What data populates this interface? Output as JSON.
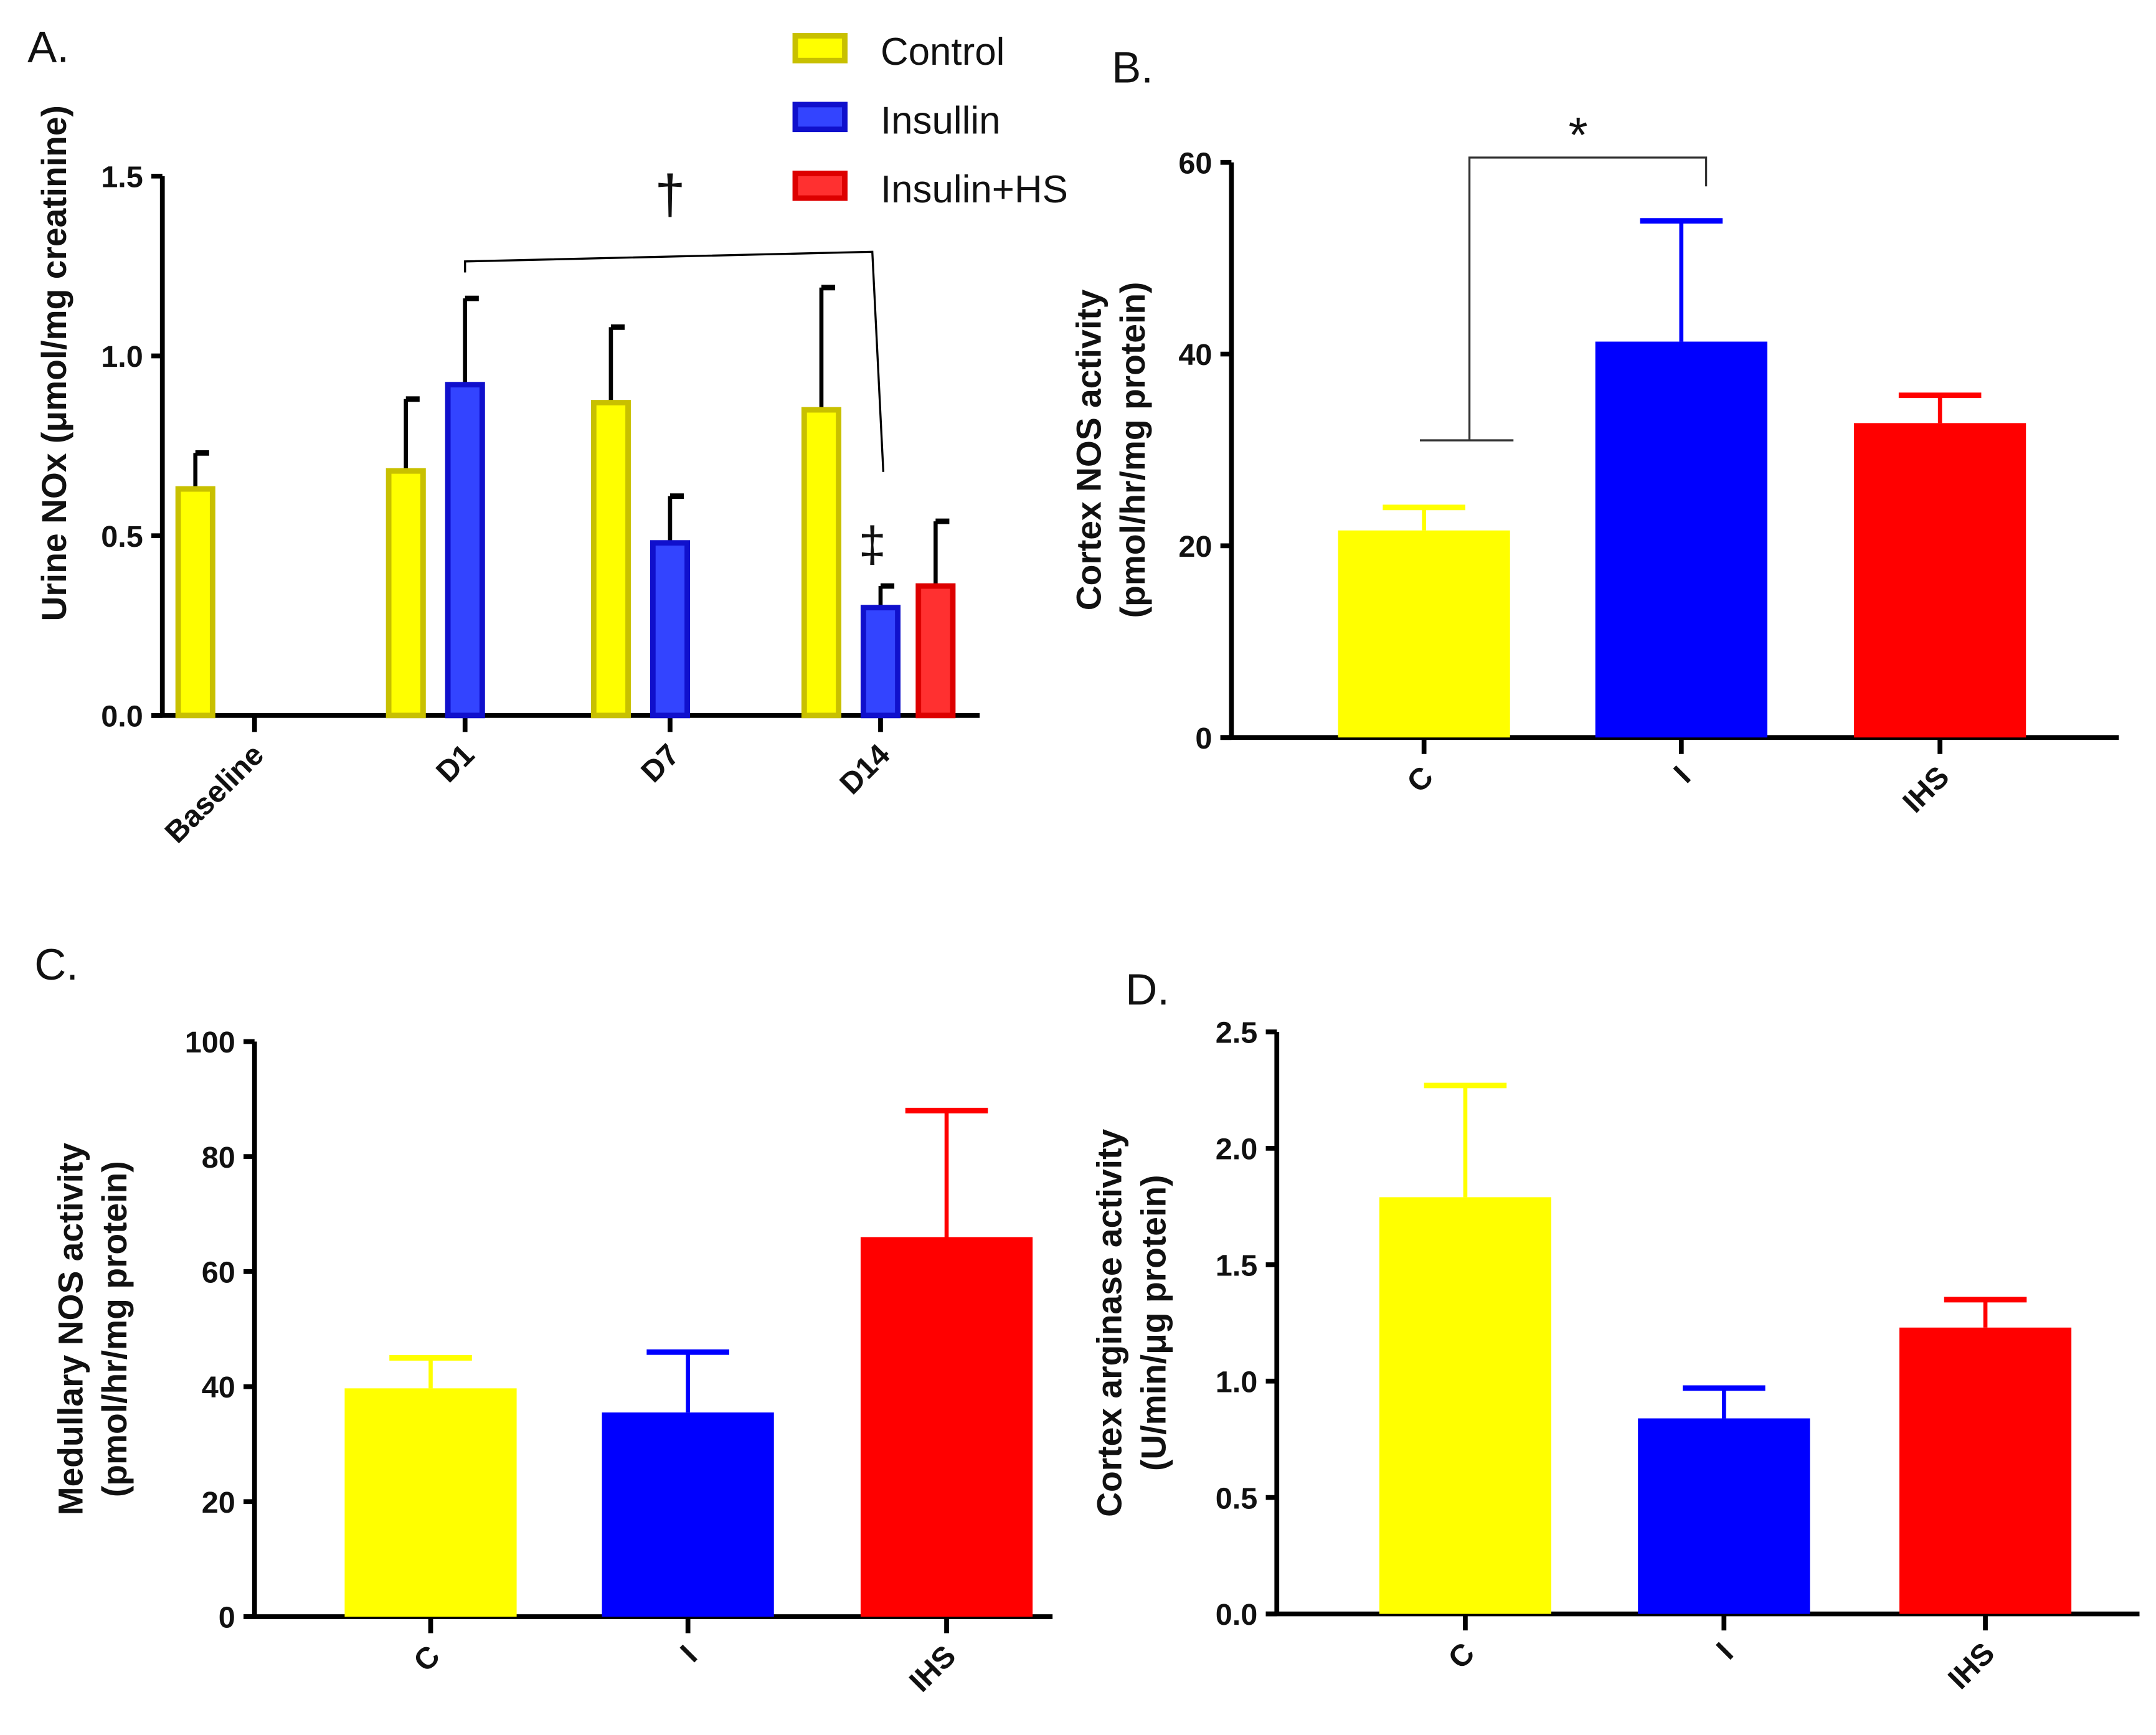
{
  "chart_data": [
    {
      "panel": "A.",
      "type": "bar",
      "ylabel": "Urine NOx (μmol/mg creatinine)",
      "ylim": [
        0,
        1.5
      ],
      "yticks": [
        "0.0",
        "0.5",
        "1.0",
        "1.5"
      ],
      "categories": [
        "Baseline",
        "D1",
        "D7",
        "D14"
      ],
      "legend": [
        {
          "name": "Control",
          "color": "#ffff00",
          "edge": "#c8c000"
        },
        {
          "name": "Insullin",
          "color": "#3344ff",
          "edge": "#1010cc"
        },
        {
          "name": "Insulin+HS",
          "color": "#ff3030",
          "edge": "#dd0000"
        }
      ],
      "series": [
        {
          "name": "Control",
          "values": [
            0.63,
            0.68,
            0.87,
            0.85
          ],
          "error_top": [
            0.73,
            0.88,
            1.08,
            1.19
          ]
        },
        {
          "name": "Insullin",
          "values": [
            null,
            0.92,
            0.48,
            0.3
          ],
          "error_top": [
            null,
            1.16,
            0.61,
            0.36
          ]
        },
        {
          "name": "Insulin+HS",
          "values": [
            null,
            null,
            null,
            0.36
          ],
          "error_top": [
            null,
            null,
            null,
            0.54
          ]
        }
      ],
      "annotations": [
        {
          "text": "†",
          "meaning": "D1 vs D14 Insulin"
        },
        {
          "text": "‡",
          "meaning": "D14 Insulin"
        }
      ]
    },
    {
      "panel": "B.",
      "type": "bar",
      "ylabel": [
        "Cortex NOS activity",
        "(pmol/hr/mg protein)"
      ],
      "ylim": [
        0,
        60
      ],
      "yticks": [
        "0",
        "20",
        "40",
        "60"
      ],
      "categories": [
        "C",
        "I",
        "IHS"
      ],
      "colors": [
        "#ffff00",
        "#0000ff",
        "#ff0000"
      ],
      "values": [
        21.6,
        41.3,
        32.8
      ],
      "error_top": [
        24.0,
        53.9,
        35.7
      ],
      "annotations": [
        {
          "text": "*"
        }
      ]
    },
    {
      "panel": "C.",
      "type": "bar",
      "ylabel": [
        "Medullary NOS activity",
        "(pmol/hr/mg protein)"
      ],
      "ylim": [
        0,
        100
      ],
      "yticks": [
        "0",
        "20",
        "40",
        "60",
        "80",
        "100"
      ],
      "categories": [
        "C",
        "I",
        "IHS"
      ],
      "colors": [
        "#ffff00",
        "#0000ff",
        "#ff0000"
      ],
      "values": [
        39.7,
        35.5,
        66.0
      ],
      "error_top": [
        45.0,
        46.0,
        88.0
      ]
    },
    {
      "panel": "D.",
      "type": "bar",
      "ylabel": [
        "Cortex arginase activity",
        "(U/min/μg protein)"
      ],
      "ylim": [
        0,
        2.5
      ],
      "yticks": [
        "0.0",
        "0.5",
        "1.0",
        "1.5",
        "2.0",
        "2.5"
      ],
      "categories": [
        "C",
        "I",
        "IHS"
      ],
      "colors": [
        "#ffff00",
        "#0000ff",
        "#ff0000"
      ],
      "values": [
        1.79,
        0.84,
        1.23
      ],
      "error_top": [
        2.27,
        0.97,
        1.35
      ]
    }
  ]
}
